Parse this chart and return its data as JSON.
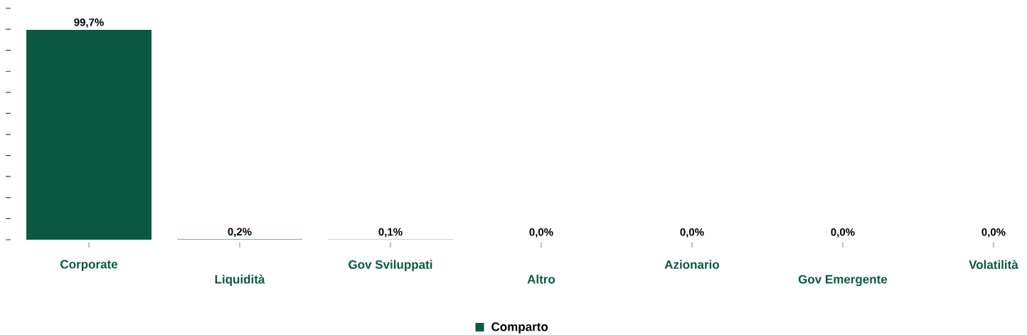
{
  "chart_data": {
    "type": "bar",
    "categories": [
      "Corporate",
      "Liquidità",
      "Gov Sviluppati",
      "Altro",
      "Azionario",
      "Gov Emergente",
      "Volatilità"
    ],
    "series": [
      {
        "name": "Comparto",
        "color": "#0b5940",
        "values": [
          99.7,
          0.2,
          0.1,
          0.0,
          0.0,
          0.0,
          0.0
        ],
        "value_labels": [
          "99,7%",
          "0,2%",
          "0,1%",
          "0,0%",
          "0,0%",
          "0,0%",
          "0,0%"
        ]
      }
    ],
    "yticks": [
      {
        "value": 0,
        "label": null
      },
      {
        "value": 10,
        "label": null
      },
      {
        "value": 20,
        "label": null
      },
      {
        "value": 30,
        "label": null
      },
      {
        "value": 40,
        "label": null
      },
      {
        "value": 50,
        "label": null
      },
      {
        "value": 60,
        "label": null
      },
      {
        "value": 70,
        "label": null
      },
      {
        "value": 80,
        "label": null
      },
      {
        "value": 90,
        "label": null
      },
      {
        "value": 100,
        "label": null
      },
      {
        "value": 110,
        "label": null
      }
    ],
    "legend": "bottom"
  }
}
